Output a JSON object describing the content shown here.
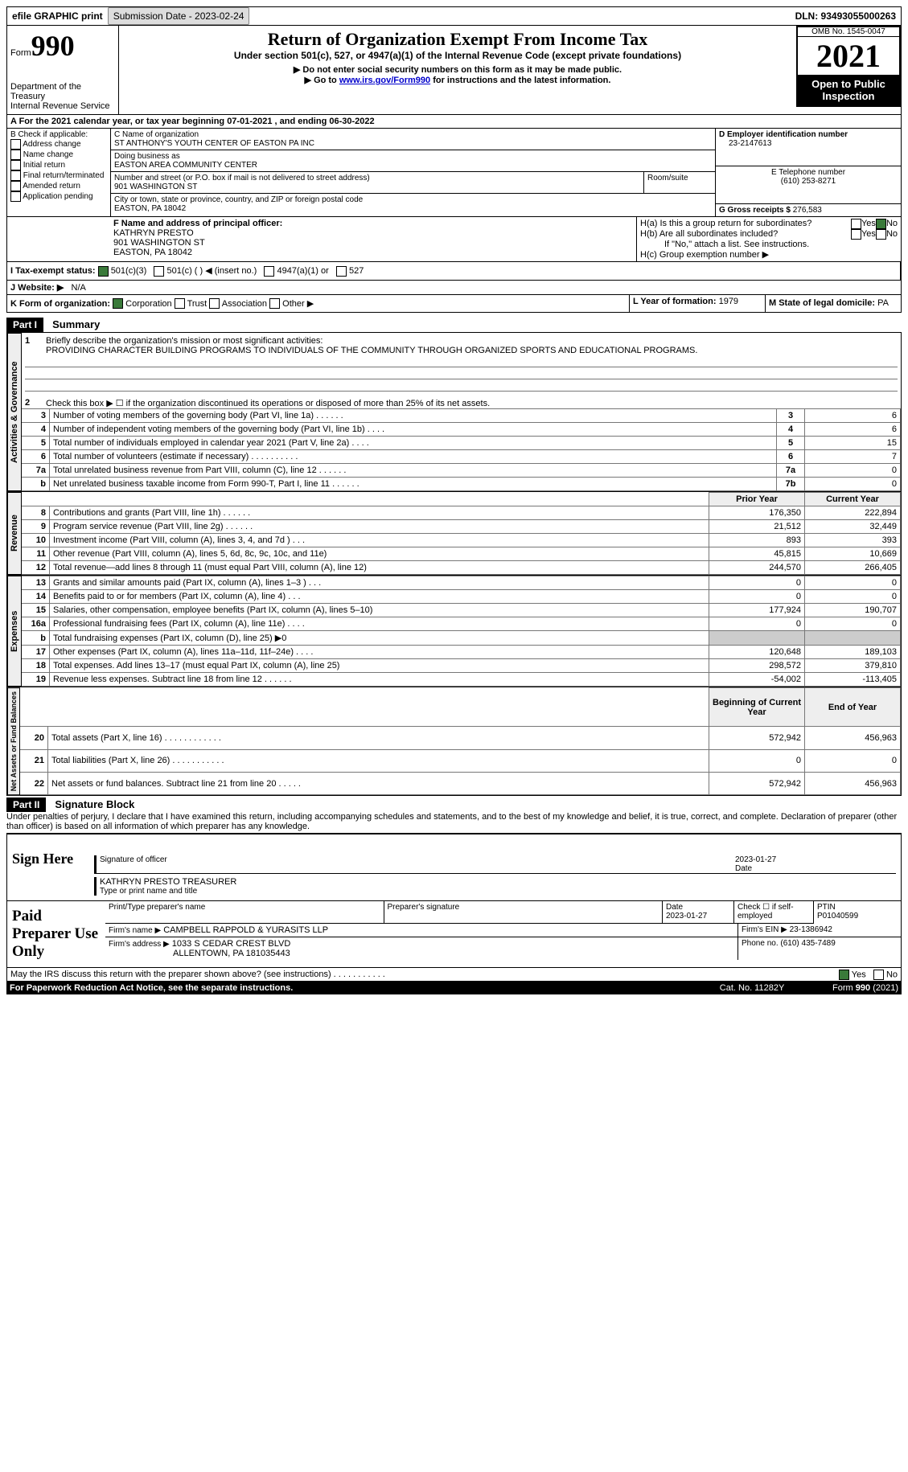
{
  "topbar": {
    "efile": "efile GRAPHIC print",
    "submission_label": "Submission Date - 2023-02-24",
    "dln_label": "DLN: 93493055000263"
  },
  "header": {
    "form_label": "Form",
    "form_number": "990",
    "dept": "Department of the Treasury",
    "irs": "Internal Revenue Service",
    "title": "Return of Organization Exempt From Income Tax",
    "subtitle": "Under section 501(c), 527, or 4947(a)(1) of the Internal Revenue Code (except private foundations)",
    "note1": "▶ Do not enter social security numbers on this form as it may be made public.",
    "note2": "▶ Go to ",
    "link": "www.irs.gov/Form990",
    "note3": " for instructions and the latest information.",
    "omb": "OMB No. 1545-0047",
    "year": "2021",
    "inspection": "Open to Public Inspection"
  },
  "line_a": "A For the 2021 calendar year, or tax year beginning 07-01-2021   , and ending 06-30-2022",
  "box_b": {
    "label": "B Check if applicable:",
    "items": [
      "Address change",
      "Name change",
      "Initial return",
      "Final return/terminated",
      "Amended return",
      "Application pending"
    ]
  },
  "box_c": {
    "name_label": "C Name of organization",
    "name": "ST ANTHONY'S YOUTH CENTER OF EASTON PA INC",
    "dba_label": "Doing business as",
    "dba": "EASTON AREA COMMUNITY CENTER",
    "street_label": "Number and street (or P.O. box if mail is not delivered to street address)",
    "street": "901 WASHINGTON ST",
    "room_label": "Room/suite",
    "city_label": "City or town, state or province, country, and ZIP or foreign postal code",
    "city": "EASTON, PA  18042"
  },
  "box_d": {
    "label": "D Employer identification number",
    "value": "23-2147613"
  },
  "box_e": {
    "label": "E Telephone number",
    "value": "(610) 253-8271"
  },
  "box_g": {
    "label": "G Gross receipts $",
    "value": "276,583"
  },
  "box_f": {
    "label": "F Name and address of principal officer:",
    "name": "KATHRYN PRESTO",
    "street": "901 WASHINGTON ST",
    "city": "EASTON, PA  18042"
  },
  "box_h": {
    "a": "H(a)  Is this a group return for subordinates?",
    "b": "H(b)  Are all subordinates included?",
    "note": "If \"No,\" attach a list. See instructions.",
    "c": "H(c)  Group exemption number ▶"
  },
  "box_i": {
    "label": "I   Tax-exempt status:",
    "opts": [
      "501(c)(3)",
      "501(c) (  ) ◀ (insert no.)",
      "4947(a)(1) or",
      "527"
    ]
  },
  "box_j": {
    "label": "J   Website: ▶",
    "value": "N/A"
  },
  "box_k": {
    "label": "K Form of organization:",
    "opts": [
      "Corporation",
      "Trust",
      "Association",
      "Other ▶"
    ]
  },
  "box_l": {
    "label": "L Year of formation:",
    "value": "1979"
  },
  "box_m": {
    "label": "M State of legal domicile:",
    "value": "PA"
  },
  "part1": {
    "title": "Part I",
    "name": "Summary",
    "q1": "Briefly describe the organization's mission or most significant activities:",
    "q1_ans": "PROVIDING CHARACTER BUILDING PROGRAMS TO INDIVIDUALS OF THE COMMUNITY THROUGH ORGANIZED SPORTS AND EDUCATIONAL PROGRAMS.",
    "q2": "Check this box ▶ ☐ if the organization discontinued its operations or disposed of more than 25% of its net assets.",
    "sections": {
      "gov": "Activities & Governance",
      "rev": "Revenue",
      "exp": "Expenses",
      "net": "Net Assets or Fund Balances"
    },
    "rows": [
      {
        "n": "3",
        "t": "Number of voting members of the governing body (Part VI, line 1a)  .    .    .    .    .    .",
        "b": "3",
        "py": "",
        "cy": "6"
      },
      {
        "n": "4",
        "t": "Number of independent voting members of the governing body (Part VI, line 1b)   .    .    .    .",
        "b": "4",
        "py": "",
        "cy": "6"
      },
      {
        "n": "5",
        "t": "Total number of individuals employed in calendar year 2021 (Part V, line 2a)   .    .    .    .",
        "b": "5",
        "py": "",
        "cy": "15"
      },
      {
        "n": "6",
        "t": "Total number of volunteers (estimate if necessary)    .    .    .    .    .    .    .    .    .    .",
        "b": "6",
        "py": "",
        "cy": "7"
      },
      {
        "n": "7a",
        "t": "Total unrelated business revenue from Part VIII, column (C), line 12    .    .    .    .    .    .",
        "b": "7a",
        "py": "",
        "cy": "0"
      },
      {
        "n": "b",
        "t": "Net unrelated business taxable income from Form 990-T, Part I, line 11  .    .    .    .    .    .",
        "b": "7b",
        "py": "",
        "cy": "0"
      }
    ],
    "rev_header": {
      "py": "Prior Year",
      "cy": "Current Year"
    },
    "rev_rows": [
      {
        "n": "8",
        "t": "Contributions and grants (Part VIII, line 1h)    .    .    .    .    .    .",
        "py": "176,350",
        "cy": "222,894"
      },
      {
        "n": "9",
        "t": "Program service revenue (Part VIII, line 2g)   .    .    .    .    .    .",
        "py": "21,512",
        "cy": "32,449"
      },
      {
        "n": "10",
        "t": "Investment income (Part VIII, column (A), lines 3, 4, and 7d )   .    .    .",
        "py": "893",
        "cy": "393"
      },
      {
        "n": "11",
        "t": "Other revenue (Part VIII, column (A), lines 5, 6d, 8c, 9c, 10c, and 11e)",
        "py": "45,815",
        "cy": "10,669"
      },
      {
        "n": "12",
        "t": "Total revenue—add lines 8 through 11 (must equal Part VIII, column (A), line 12)",
        "py": "244,570",
        "cy": "266,405"
      }
    ],
    "exp_rows": [
      {
        "n": "13",
        "t": "Grants and similar amounts paid (Part IX, column (A), lines 1–3 )  .    .    .",
        "py": "0",
        "cy": "0"
      },
      {
        "n": "14",
        "t": "Benefits paid to or for members (Part IX, column (A), line 4)   .    .    .",
        "py": "0",
        "cy": "0"
      },
      {
        "n": "15",
        "t": "Salaries, other compensation, employee benefits (Part IX, column (A), lines 5–10)",
        "py": "177,924",
        "cy": "190,707"
      },
      {
        "n": "16a",
        "t": "Professional fundraising fees (Part IX, column (A), line 11e)   .    .    .    .",
        "py": "0",
        "cy": "0"
      },
      {
        "n": "b",
        "t": "Total fundraising expenses (Part IX, column (D), line 25) ▶0",
        "py": "",
        "cy": ""
      },
      {
        "n": "17",
        "t": "Other expenses (Part IX, column (A), lines 11a–11d, 11f–24e)  .    .    .    .",
        "py": "120,648",
        "cy": "189,103"
      },
      {
        "n": "18",
        "t": "Total expenses. Add lines 13–17 (must equal Part IX, column (A), line 25)",
        "py": "298,572",
        "cy": "379,810"
      },
      {
        "n": "19",
        "t": "Revenue less expenses. Subtract line 18 from line 12  .    .    .    .    .    .",
        "py": "-54,002",
        "cy": "-113,405"
      }
    ],
    "net_header": {
      "py": "Beginning of Current Year",
      "cy": "End of Year"
    },
    "net_rows": [
      {
        "n": "20",
        "t": "Total assets (Part X, line 16)  .    .    .    .    .    .    .    .    .    .    .    .",
        "py": "572,942",
        "cy": "456,963"
      },
      {
        "n": "21",
        "t": "Total liabilities (Part X, line 26)  .    .    .    .    .    .    .    .    .    .    .",
        "py": "0",
        "cy": "0"
      },
      {
        "n": "22",
        "t": "Net assets or fund balances. Subtract line 21 from line 20  .    .    .    .    .",
        "py": "572,942",
        "cy": "456,963"
      }
    ]
  },
  "part2": {
    "title": "Part II",
    "name": "Signature Block",
    "declaration": "Under penalties of perjury, I declare that I have examined this return, including accompanying schedules and statements, and to the best of my knowledge and belief, it is true, correct, and complete. Declaration of preparer (other than officer) is based on all information of which preparer has any knowledge."
  },
  "sign": {
    "label": "Sign Here",
    "sig_label": "Signature of officer",
    "date_label": "Date",
    "date": "2023-01-27",
    "name_label": "Type or print name and title",
    "name": "KATHRYN PRESTO  TREASURER"
  },
  "preparer": {
    "label": "Paid Preparer Use Only",
    "name_label": "Print/Type preparer's name",
    "sig_label": "Preparer's signature",
    "date_label": "Date",
    "date": "2023-01-27",
    "check_label": "Check ☐ if self-employed",
    "ptin_label": "PTIN",
    "ptin": "P01040599",
    "firm_label": "Firm's name    ▶",
    "firm": "CAMPBELL RAPPOLD & YURASITS LLP",
    "ein_label": "Firm's EIN ▶",
    "ein": "23-1386942",
    "addr_label": "Firm's address ▶",
    "addr1": "1033 S CEDAR CREST BLVD",
    "addr2": "ALLENTOWN, PA  181035443",
    "phone_label": "Phone no.",
    "phone": "(610) 435-7489"
  },
  "footer": {
    "q": "May the IRS discuss this return with the preparer shown above? (see instructions)    .    .    .    .    .    .    .    .    .    .    .",
    "yes": "Yes",
    "no": "No",
    "paperwork": "For Paperwork Reduction Act Notice, see the separate instructions.",
    "cat": "Cat. No. 11282Y",
    "form": "Form 990 (2021)"
  }
}
